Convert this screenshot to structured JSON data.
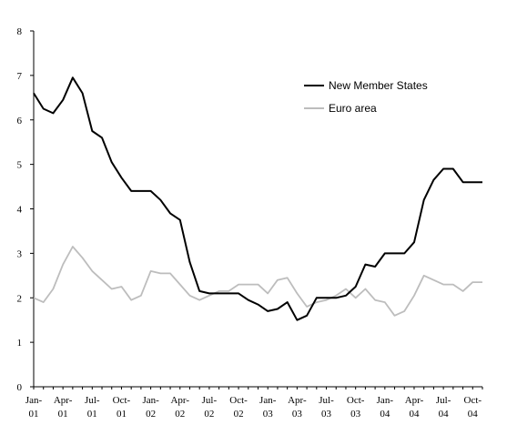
{
  "chart_data": {
    "type": "line",
    "title": "",
    "xlabel": "",
    "ylabel": "",
    "ylim": [
      0,
      8
    ],
    "yticks": [
      "0",
      "1",
      "2",
      "3",
      "4",
      "5",
      "6",
      "7",
      "8"
    ],
    "xtick_labels": [
      {
        "top": "Jan-",
        "bottom": "01"
      },
      {
        "top": "Apr-",
        "bottom": "01"
      },
      {
        "top": "Jul-",
        "bottom": "01"
      },
      {
        "top": "Oct-",
        "bottom": "01"
      },
      {
        "top": "Jan-",
        "bottom": "02"
      },
      {
        "top": "Apr-",
        "bottom": "02"
      },
      {
        "top": "Jul-",
        "bottom": "02"
      },
      {
        "top": "Oct-",
        "bottom": "02"
      },
      {
        "top": "Jan-",
        "bottom": "03"
      },
      {
        "top": "Apr-",
        "bottom": "03"
      },
      {
        "top": "Jul-",
        "bottom": "03"
      },
      {
        "top": "Oct-",
        "bottom": "03"
      },
      {
        "top": "Jan-",
        "bottom": "04"
      },
      {
        "top": "Apr-",
        "bottom": "04"
      },
      {
        "top": "Jul-",
        "bottom": "04"
      },
      {
        "top": "Oct-",
        "bottom": "04"
      }
    ],
    "x": [
      "2001-01",
      "2001-02",
      "2001-03",
      "2001-04",
      "2001-05",
      "2001-06",
      "2001-07",
      "2001-08",
      "2001-09",
      "2001-10",
      "2001-11",
      "2001-12",
      "2002-01",
      "2002-02",
      "2002-03",
      "2002-04",
      "2002-05",
      "2002-06",
      "2002-07",
      "2002-08",
      "2002-09",
      "2002-10",
      "2002-11",
      "2002-12",
      "2003-01",
      "2003-02",
      "2003-03",
      "2003-04",
      "2003-05",
      "2003-06",
      "2003-07",
      "2003-08",
      "2003-09",
      "2003-10",
      "2003-11",
      "2003-12",
      "2004-01",
      "2004-02",
      "2004-03",
      "2004-04",
      "2004-05",
      "2004-06",
      "2004-07",
      "2004-08",
      "2004-09",
      "2004-10",
      "2004-11"
    ],
    "series": [
      {
        "name": "New Member States",
        "color": "#000000",
        "values": [
          6.6,
          6.25,
          6.15,
          6.45,
          6.95,
          6.6,
          5.75,
          5.6,
          5.05,
          4.7,
          4.4,
          4.4,
          4.4,
          4.2,
          3.9,
          3.75,
          2.8,
          2.15,
          2.1,
          2.1,
          2.1,
          2.1,
          1.95,
          1.85,
          1.7,
          1.75,
          1.9,
          1.5,
          1.6,
          2.0,
          2.0,
          2.0,
          2.05,
          2.25,
          2.75,
          2.7,
          3.0,
          3.0,
          3.0,
          3.25,
          4.2,
          4.65,
          4.9,
          4.9,
          4.6,
          4.6,
          4.6
        ]
      },
      {
        "name": "Euro area",
        "color": "#bdbdbd",
        "values": [
          2.0,
          1.9,
          2.2,
          2.75,
          3.15,
          2.9,
          2.6,
          2.4,
          2.2,
          2.25,
          1.95,
          2.05,
          2.6,
          2.55,
          2.55,
          2.3,
          2.05,
          1.95,
          2.05,
          2.15,
          2.15,
          2.3,
          2.3,
          2.3,
          2.1,
          2.4,
          2.45,
          2.1,
          1.8,
          1.9,
          1.95,
          2.05,
          2.2,
          2.0,
          2.2,
          1.95,
          1.9,
          1.6,
          1.7,
          2.05,
          2.5,
          2.4,
          2.3,
          2.3,
          2.15,
          2.35,
          2.35
        ]
      }
    ],
    "legend": {
      "position": "top-right",
      "items": [
        {
          "label": "New Member States",
          "color": "#000000"
        },
        {
          "label": "Euro area",
          "color": "#bdbdbd"
        }
      ]
    },
    "grid": false
  }
}
